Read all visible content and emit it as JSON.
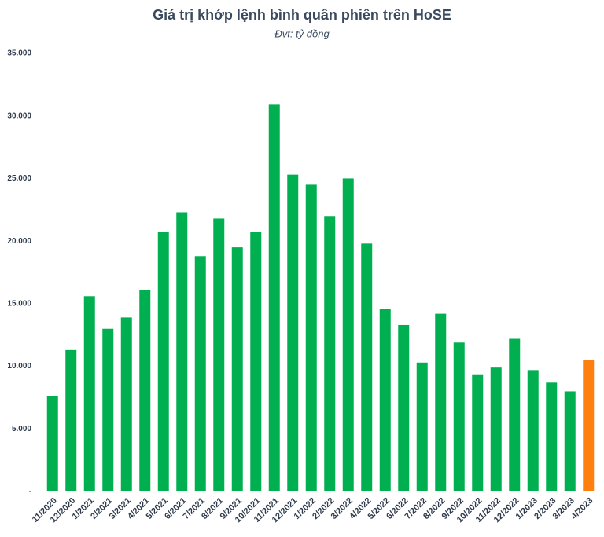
{
  "chart_data": {
    "type": "bar",
    "title": "Giá trị khớp lệnh bình quân phiên trên HoSE",
    "subtitle": "Đvt: tỷ đồng",
    "categories": [
      "11/2020",
      "12/2020",
      "1/2021",
      "2/2021",
      "3/2021",
      "4/2021",
      "5/2021",
      "6/2021",
      "7/2021",
      "8/2021",
      "9/2021",
      "10/2021",
      "11/2021",
      "12/2021",
      "1/2022",
      "2/2022",
      "3/2022",
      "4/2022",
      "5/2022",
      "6/2022",
      "7/2022",
      "8/2022",
      "9/2022",
      "10/2022",
      "11/2022",
      "12/2022",
      "1/2023",
      "2/2023",
      "3/2023",
      "4/2023"
    ],
    "values": [
      7600,
      11300,
      15600,
      13000,
      13900,
      16100,
      20700,
      22300,
      18800,
      21800,
      19500,
      20700,
      30900,
      25300,
      24500,
      22000,
      25000,
      19800,
      14600,
      13300,
      10300,
      14200,
      11900,
      9300,
      9900,
      12200,
      9700,
      8700,
      8000,
      10500
    ],
    "colors": [
      "#00b050",
      "#00b050",
      "#00b050",
      "#00b050",
      "#00b050",
      "#00b050",
      "#00b050",
      "#00b050",
      "#00b050",
      "#00b050",
      "#00b050",
      "#00b050",
      "#00b050",
      "#00b050",
      "#00b050",
      "#00b050",
      "#00b050",
      "#00b050",
      "#00b050",
      "#00b050",
      "#00b050",
      "#00b050",
      "#00b050",
      "#00b050",
      "#00b050",
      "#00b050",
      "#00b050",
      "#00b050",
      "#00b050",
      "#ff7f0e"
    ],
    "ylim": [
      0,
      35000
    ],
    "yticks": [
      {
        "value": 0,
        "label": "-"
      },
      {
        "value": 5000,
        "label": "5.000"
      },
      {
        "value": 10000,
        "label": "10.000"
      },
      {
        "value": 15000,
        "label": "15.000"
      },
      {
        "value": 20000,
        "label": "20.000"
      },
      {
        "value": 25000,
        "label": "25.000"
      },
      {
        "value": 30000,
        "label": "30.000"
      },
      {
        "value": 35000,
        "label": "35.000"
      }
    ],
    "grid": false
  }
}
